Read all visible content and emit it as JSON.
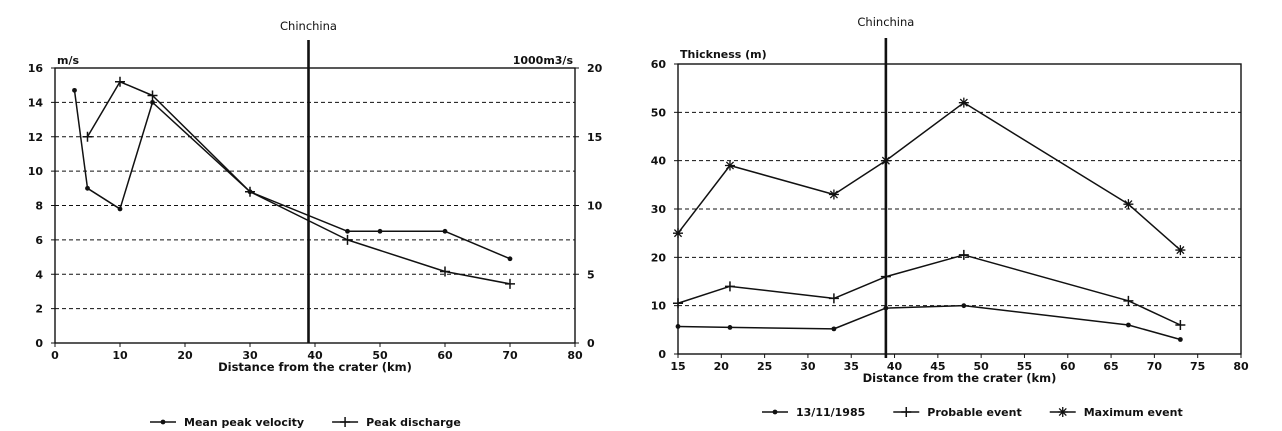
{
  "chart_data": [
    {
      "type": "line",
      "annotation": "Chinchina",
      "annotation_x": 39,
      "xlabel": "Distance from the crater (km)",
      "ylabel_left": "m/s",
      "ylabel_right": "1000m3/s",
      "xlim": [
        0,
        80
      ],
      "xticks": [
        0,
        10,
        20,
        30,
        40,
        50,
        60,
        70,
        80
      ],
      "ylim_left": [
        0,
        16
      ],
      "yticks_left": [
        0,
        2,
        4,
        6,
        8,
        10,
        12,
        14,
        16
      ],
      "ylim_right": [
        0,
        20
      ],
      "yticks_right": [
        0,
        5,
        10,
        15,
        20
      ],
      "grid": "horizontal dashed",
      "legend_position": "bottom",
      "series": [
        {
          "name": "Mean peak velocity",
          "axis": "left",
          "marker": "dot",
          "x": [
            3,
            5,
            10,
            15,
            30,
            45,
            50,
            60,
            70
          ],
          "y": [
            14.7,
            9.0,
            7.8,
            14.0,
            8.8,
            6.5,
            6.5,
            6.5,
            4.9
          ]
        },
        {
          "name": "Peak discharge",
          "axis": "right",
          "marker": "plus",
          "x": [
            5,
            10,
            15,
            30,
            45,
            60,
            70
          ],
          "y": [
            15.0,
            19.0,
            18.0,
            11.0,
            7.5,
            5.2,
            4.3
          ]
        }
      ]
    },
    {
      "type": "line",
      "annotation": "Chinchina",
      "annotation_x": 39,
      "xlabel": "Distance from the crater (km)",
      "ylabel": "Thickness (m)",
      "xlim": [
        15,
        80
      ],
      "xticks": [
        15,
        20,
        25,
        30,
        35,
        40,
        45,
        50,
        55,
        60,
        65,
        70,
        75,
        80
      ],
      "ylim": [
        0,
        60
      ],
      "yticks": [
        0,
        10,
        20,
        30,
        40,
        50,
        60
      ],
      "grid": "horizontal dashed",
      "legend_position": "bottom",
      "series": [
        {
          "name": "13/11/1985",
          "marker": "dot",
          "x": [
            15,
            21,
            33,
            39,
            48,
            67,
            73
          ],
          "y": [
            5.7,
            5.5,
            5.2,
            9.5,
            10.0,
            6.0,
            3.0
          ]
        },
        {
          "name": "Probable event",
          "marker": "plus",
          "x": [
            15,
            21,
            33,
            39,
            48,
            67,
            73
          ],
          "y": [
            10.5,
            14.0,
            11.5,
            16.0,
            20.5,
            11.0,
            6.0
          ]
        },
        {
          "name": "Maximum event",
          "marker": "asterisk",
          "x": [
            15,
            21,
            33,
            39,
            48,
            67,
            73
          ],
          "y": [
            25.0,
            39.0,
            33.0,
            40.0,
            52.0,
            31.0,
            21.5
          ]
        }
      ]
    }
  ]
}
